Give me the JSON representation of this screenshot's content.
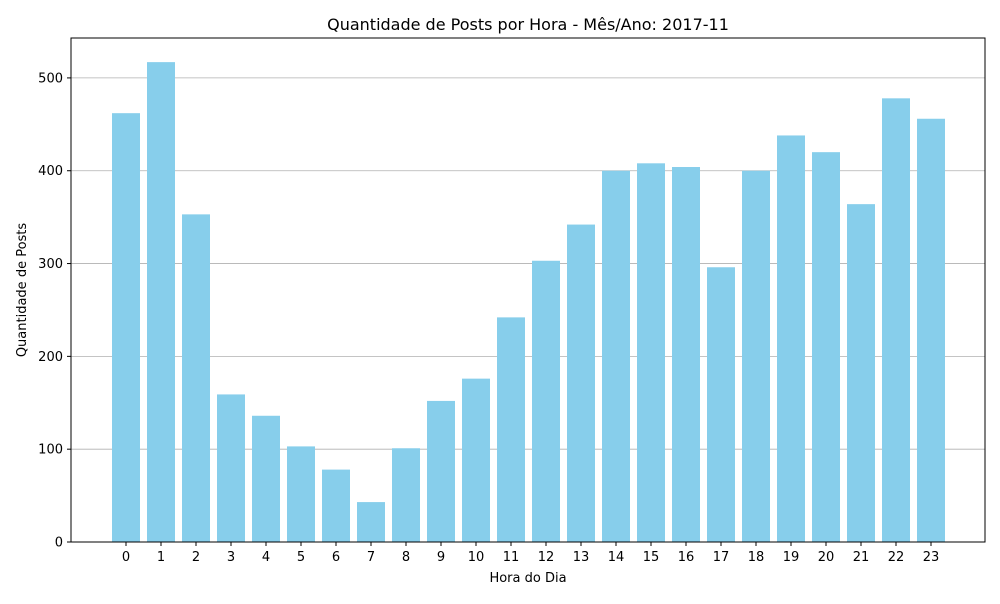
{
  "chart_data": {
    "type": "bar",
    "title": "Quantidade de Posts por Hora - Mês/Ano: 2017-11",
    "xlabel": "Hora do Dia",
    "ylabel": "Quantidade de Posts",
    "categories": [
      "0",
      "1",
      "2",
      "3",
      "4",
      "5",
      "6",
      "7",
      "8",
      "9",
      "10",
      "11",
      "12",
      "13",
      "14",
      "15",
      "16",
      "17",
      "18",
      "19",
      "20",
      "21",
      "22",
      "23"
    ],
    "values": [
      462,
      517,
      353,
      159,
      136,
      103,
      78,
      43,
      101,
      152,
      176,
      242,
      303,
      342,
      400,
      408,
      404,
      296,
      400,
      438,
      420,
      364,
      478,
      456
    ],
    "ylim": [
      0,
      543
    ],
    "yticks": [
      0,
      100,
      200,
      300,
      400,
      500
    ],
    "grid": "y",
    "legend": "none",
    "bar_color": "#87ceeb",
    "grid_color": "#b0b0b0"
  }
}
